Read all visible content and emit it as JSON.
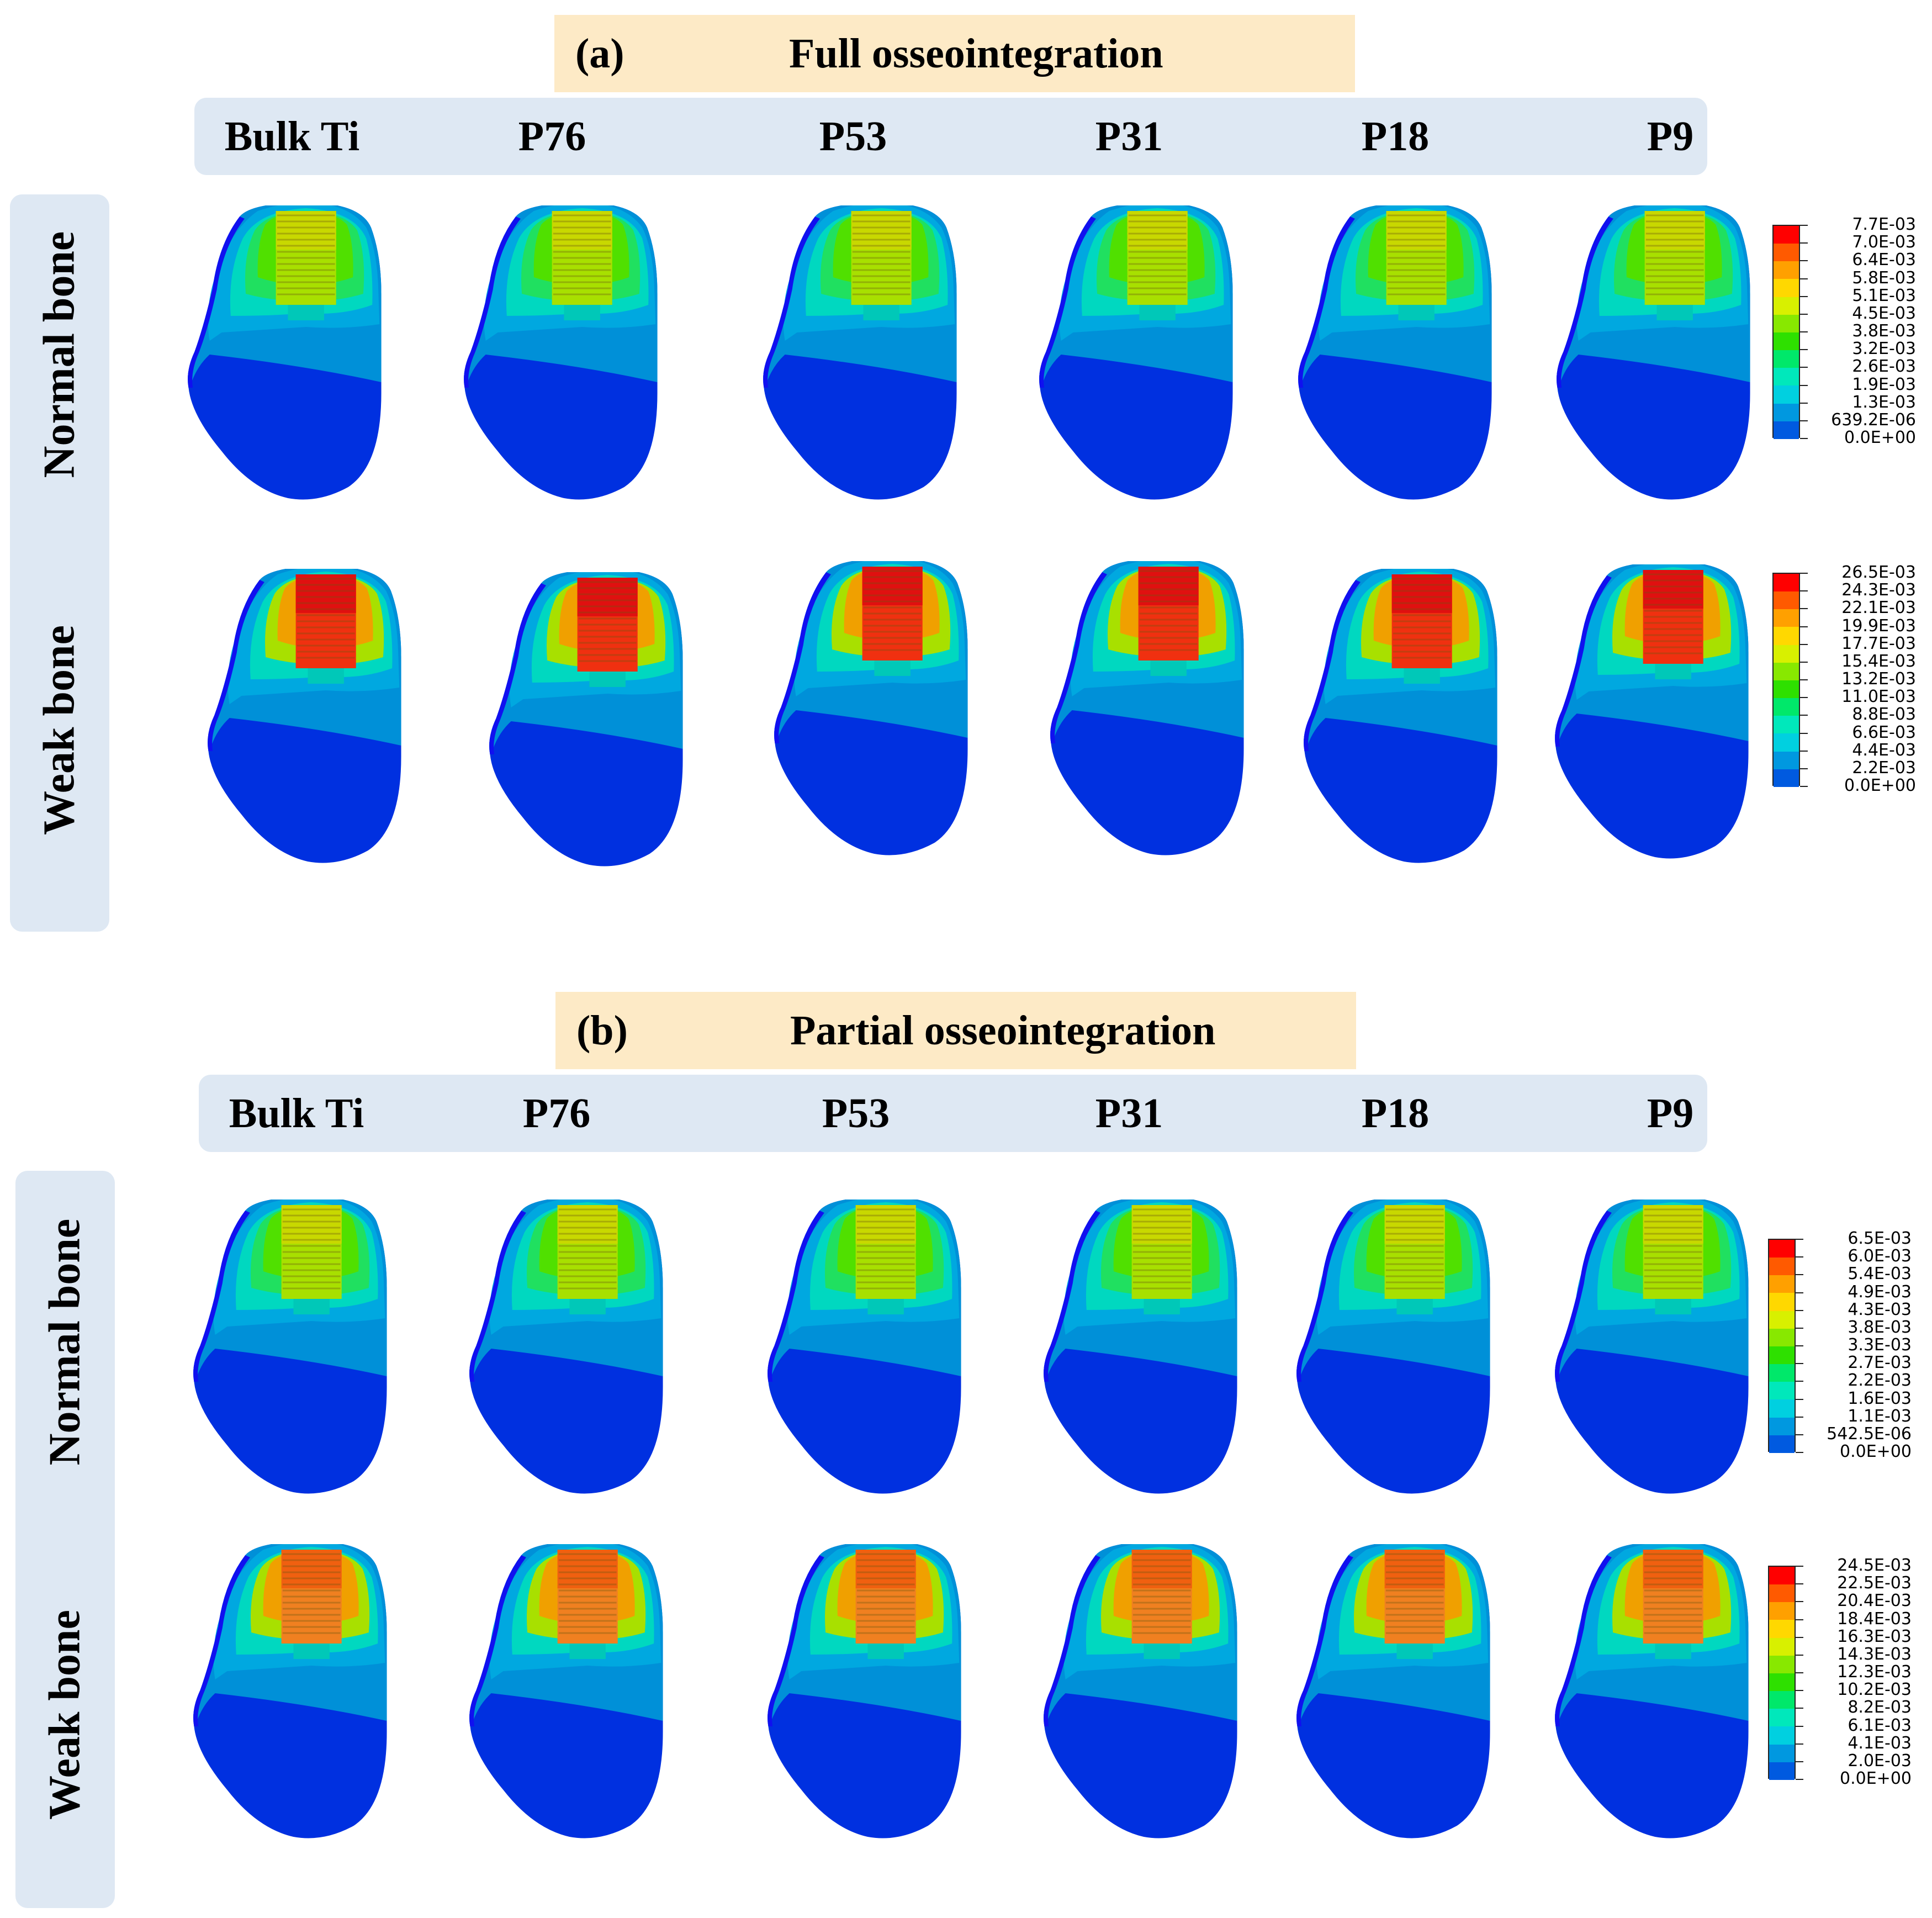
{
  "panel_a": {
    "tag": "(a)",
    "title": "Full osseointegration",
    "columns": [
      "Bulk Ti",
      "P76",
      "P53",
      "P31",
      "P18",
      "P9"
    ],
    "rows": [
      "Normal bone",
      "Weak bone"
    ],
    "legends": [
      {
        "row": "Normal bone",
        "labels": [
          "7.7E-03",
          "7.0E-03",
          "6.4E-03",
          "5.8E-03",
          "5.1E-03",
          "4.5E-03",
          "3.8E-03",
          "3.2E-03",
          "2.6E-03",
          "1.9E-03",
          "1.3E-03",
          "639.2E-06",
          "0.0E+00"
        ]
      },
      {
        "row": "Weak bone",
        "labels": [
          "26.5E-03",
          "24.3E-03",
          "22.1E-03",
          "19.9E-03",
          "17.7E-03",
          "15.4E-03",
          "13.2E-03",
          "11.0E-03",
          "8.8E-03",
          "6.6E-03",
          "4.4E-03",
          "2.2E-03",
          "0.0E+00"
        ]
      }
    ]
  },
  "panel_b": {
    "tag": "(b)",
    "title": "Partial osseointegration",
    "columns": [
      "Bulk Ti",
      "P76",
      "P53",
      "P31",
      "P18",
      "P9"
    ],
    "rows": [
      "Normal bone",
      "Weak bone"
    ],
    "legends": [
      {
        "row": "Normal bone",
        "labels": [
          "6.5E-03",
          "6.0E-03",
          "5.4E-03",
          "4.9E-03",
          "4.3E-03",
          "3.8E-03",
          "3.3E-03",
          "2.7E-03",
          "2.2E-03",
          "1.6E-03",
          "1.1E-03",
          "542.5E-06",
          "0.0E+00"
        ]
      },
      {
        "row": "Weak bone",
        "labels": [
          "24.5E-03",
          "22.5E-03",
          "20.4E-03",
          "18.4E-03",
          "16.3E-03",
          "14.3E-03",
          "12.3E-03",
          "10.2E-03",
          "8.2E-03",
          "6.1E-03",
          "4.1E-03",
          "2.0E-03",
          "0.0E+00"
        ]
      }
    ]
  },
  "colormap": [
    "#ff0000",
    "#ff5a00",
    "#ffa000",
    "#ffd800",
    "#d8f000",
    "#88e800",
    "#2ee000",
    "#00e86a",
    "#00e8bb",
    "#00d0e0",
    "#0098e0",
    "#005ae0",
    "#0000f0"
  ]
}
